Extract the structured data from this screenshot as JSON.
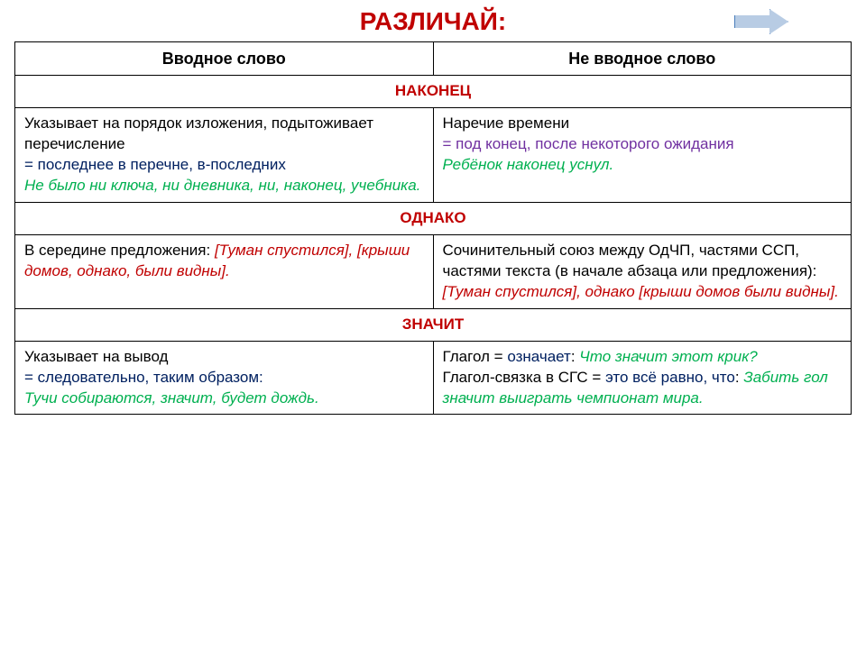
{
  "title": "РАЗЛИЧАЙ:",
  "headers": {
    "left": "Вводное слово",
    "right": "Не вводное слово"
  },
  "sections": [
    {
      "word": "НАКОНЕЦ",
      "left": {
        "plain1": "Указывает на порядок изложения, подытоживает перечисление",
        "hint": "= последнее в перечне, в-последних",
        "ex1_a": "Не было ни ключа, ни дневника, ни, ",
        "ex1_b": "наконец",
        "ex1_c": ", учебника."
      },
      "right": {
        "plain1": "Наречие времени",
        "purple": "= под конец, после некоторого ожидания",
        "ex1_a": "Ребёнок ",
        "ex1_b": "наконец",
        "ex1_c": " уснул."
      }
    },
    {
      "word": "ОДНАКО",
      "left": {
        "plain1": "В середине предложения: ",
        "ex1": "[Туман спустился], [крыши домов, однако, были видны]."
      },
      "right": {
        "plain1": "Сочинительный союз между ОдЧП, частями ССП, частями текста (в начале абзаца или предложения): ",
        "ex1": "[Туман спустился], однако [крыши домов были видны]."
      }
    },
    {
      "word": "ЗНАЧИТ",
      "left": {
        "plain1": "Указывает на вывод",
        "hint": "= следовательно, таким образом:",
        "ex1": "Тучи собираются, значит, будет дождь."
      },
      "right": {
        "plain1_a": "Глагол = ",
        "plain1_b": "означает",
        "plain1_c": ": ",
        "ex1": "Что значит этот крик?",
        "plain2_a": "Глагол-связка в СГС = ",
        "plain2_b": "это всё равно, что",
        "plain2_c": ": ",
        "ex2": "Забить гол значит выиграть чемпионат мира."
      }
    }
  ],
  "colors": {
    "title": "#c00000",
    "section_word": "#c00000",
    "hint": "#002060",
    "example": "#00b050",
    "purple": "#7030a0"
  }
}
